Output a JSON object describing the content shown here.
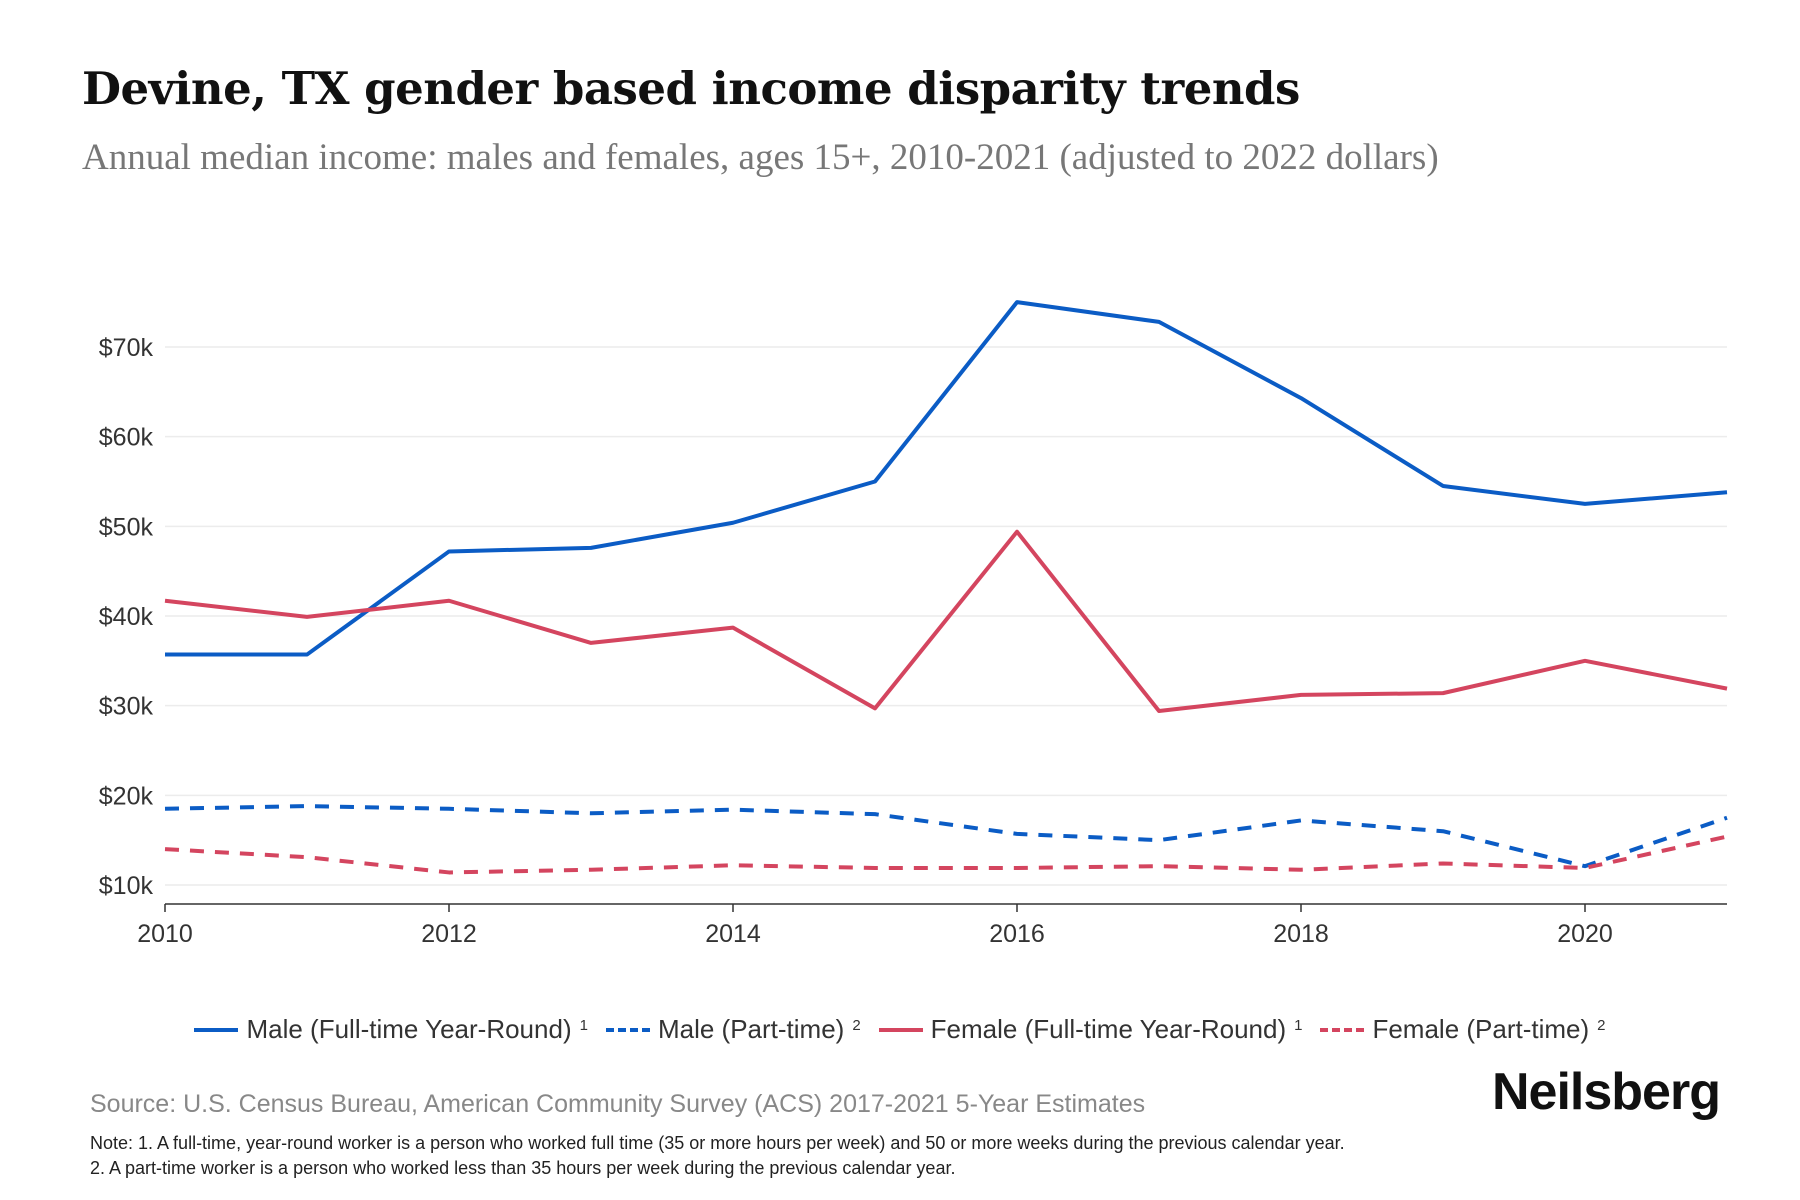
{
  "chart_data": {
    "type": "line",
    "title": "Devine, TX gender based income disparity trends",
    "subtitle": "Annual median income: males and females, ages 15+, 2010-2021 (adjusted to 2022 dollars)",
    "xlabel": "",
    "ylabel": "",
    "x": [
      2010,
      2011,
      2012,
      2013,
      2014,
      2015,
      2016,
      2017,
      2018,
      2019,
      2020,
      2021
    ],
    "xticks": [
      "2010",
      "2012",
      "2014",
      "2016",
      "2018",
      "2020"
    ],
    "yticks": [
      "$10k",
      "$20k",
      "$30k",
      "$40k",
      "$50k",
      "$60k",
      "$70k"
    ],
    "ytick_values": [
      10000,
      20000,
      30000,
      40000,
      50000,
      60000,
      70000
    ],
    "xlim": [
      2010,
      2021
    ],
    "ylim": [
      7800,
      80000
    ],
    "grid": "horizontal",
    "legend_placement": "bottom",
    "series": [
      {
        "name": "Male (Full-time Year-Round)",
        "sup": "1",
        "color": "#0b5cc5",
        "dash": false,
        "values": [
          35700,
          35700,
          47200,
          47600,
          50400,
          55000,
          75000,
          72800,
          64300,
          54500,
          52500,
          53800
        ]
      },
      {
        "name": "Male (Part-time)",
        "sup": "2",
        "color": "#0b5cc5",
        "dash": true,
        "values": [
          18500,
          18800,
          18500,
          18000,
          18400,
          17900,
          15700,
          15000,
          17200,
          16000,
          12100,
          17500
        ]
      },
      {
        "name": "Female (Full-time Year-Round)",
        "sup": "1",
        "color": "#d4455f",
        "dash": false,
        "values": [
          41700,
          39900,
          41700,
          37000,
          38700,
          29700,
          49400,
          29400,
          31200,
          31400,
          35000,
          31900
        ]
      },
      {
        "name": "Female (Part-time)",
        "sup": "2",
        "color": "#d4455f",
        "dash": true,
        "values": [
          14000,
          13100,
          11400,
          11700,
          12200,
          11900,
          11900,
          12100,
          11700,
          12400,
          11900,
          15400
        ]
      }
    ]
  },
  "footer": {
    "source": "Source: U.S. Census Bureau, American Community Survey (ACS) 2017-2021 5-Year Estimates",
    "note1": "Note: 1. A full-time, year-round worker is a person who worked full time (35 or more hours per week) and 50 or more weeks during the previous calendar year.",
    "note2": "2. A part-time worker is a person who worked less than 35 hours per week during the previous calendar year.",
    "logo": "Neilsberg"
  }
}
